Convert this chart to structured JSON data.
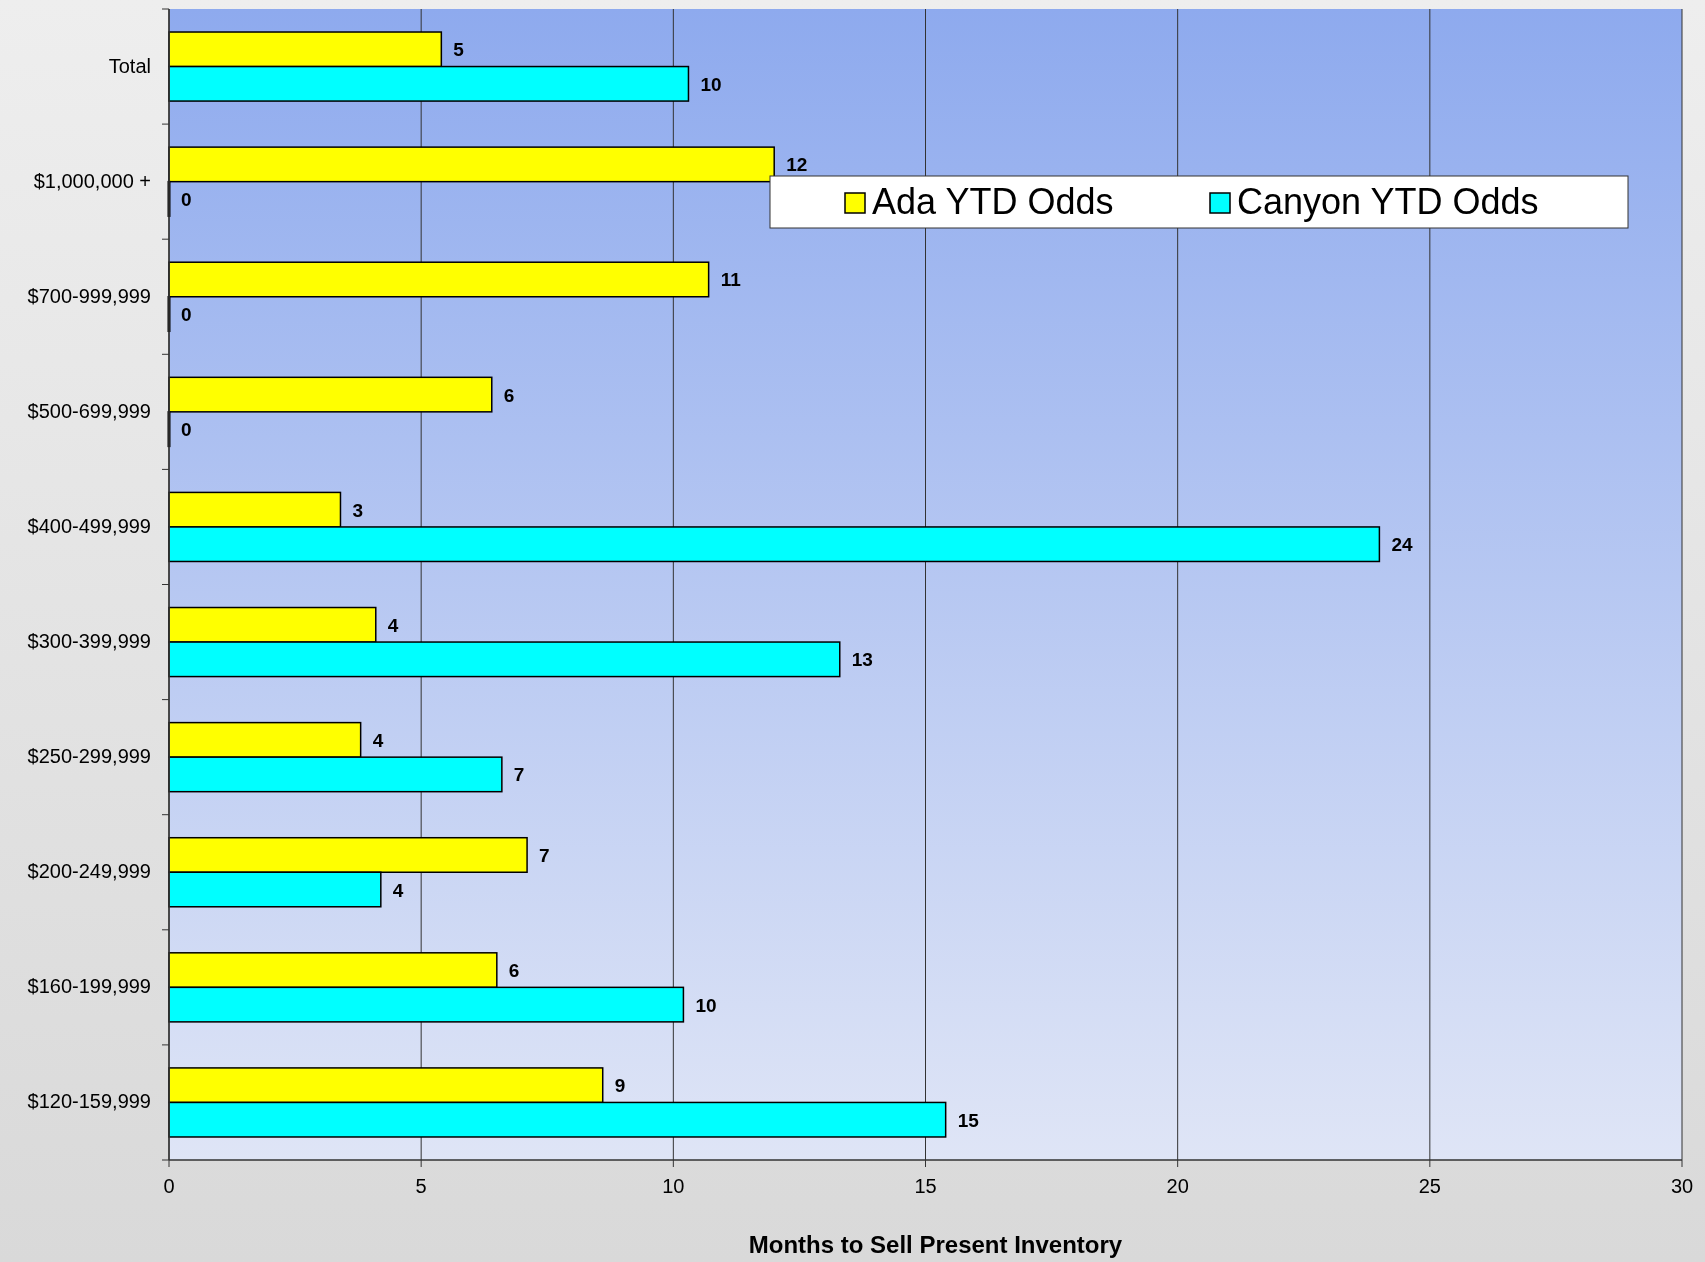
{
  "chart_data": {
    "type": "bar",
    "orientation": "horizontal",
    "xlabel": "Months to Sell Present Inventory",
    "categories": [
      "Total",
      "$1,000,000 +",
      "$700-999,999",
      "$500-699,999",
      "$400-499,999",
      "$300-399,999",
      "$250-299,999",
      "$200-249,999",
      "$160-199,999",
      "$120-159,999"
    ],
    "series": [
      {
        "name": "Ada YTD Odds",
        "color": "#ffff00",
        "values": [
          5.4,
          12.0,
          10.7,
          6.4,
          3.4,
          4.1,
          3.8,
          7.1,
          6.5,
          8.6
        ],
        "value_labels": [
          "5",
          "12",
          "11",
          "6",
          "3",
          "4",
          "4",
          "7",
          "6",
          "9"
        ]
      },
      {
        "name": "Canyon YTD Odds",
        "color": "#00ffff",
        "values": [
          10.3,
          0,
          0,
          0,
          24.0,
          13.3,
          6.6,
          4.2,
          10.2,
          15.4
        ],
        "value_labels": [
          "10",
          "0",
          "0",
          "0",
          "24",
          "13",
          "7",
          "4",
          "10",
          "15"
        ]
      }
    ],
    "xlim": [
      0,
      30
    ],
    "xticks": [
      0,
      5,
      10,
      15,
      20,
      25,
      30
    ],
    "grid": "x",
    "legend": "top right"
  }
}
